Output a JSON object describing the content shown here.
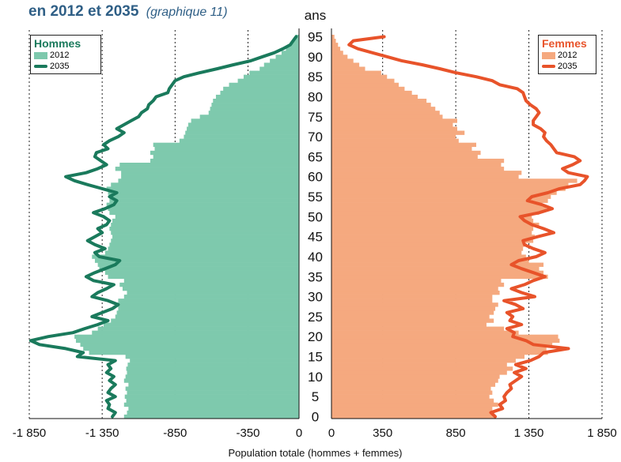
{
  "title": {
    "main": "en 2012 et 2035",
    "sub": "(graphique 11)"
  },
  "colors": {
    "men_bar": "#7ec9ad",
    "men_line": "#1a7a5c",
    "women_bar": "#f5a97f",
    "women_line": "#e8532a",
    "title": "#2f5f86",
    "men_legend_title": "#1a7a5c",
    "women_legend_title": "#e8532a"
  },
  "legend_men": {
    "title": "Hommes",
    "bar_label": "2012",
    "line_label": "2035"
  },
  "legend_women": {
    "title": "Femmes",
    "bar_label": "2012",
    "line_label": "2035"
  },
  "chart_data": {
    "type": "bar",
    "orientation": "horizontal",
    "description": "Population pyramid",
    "xlabel": "Population totale (hommes + femmes)",
    "ylabel": "ans",
    "age_ticks": [
      "0",
      "5",
      "10",
      "15",
      "20",
      "25",
      "30",
      "35",
      "40",
      "45",
      "50",
      "55",
      "60",
      "65",
      "70",
      "75",
      "80",
      "85",
      "90",
      "95"
    ],
    "men_ticks": [
      "-1 850",
      "-1 350",
      "-850",
      "-350",
      "0"
    ],
    "women_ticks": [
      "0",
      "350",
      "850",
      "1 350",
      "1 850"
    ],
    "xlim_men": [
      -1850,
      0
    ],
    "xlim_women": [
      0,
      1850
    ],
    "ylim": [
      0,
      95
    ],
    "grid": "vertical dotted lines at ticks",
    "legend_placement": "top-left for men, top-right for women",
    "men_2012": [
      1200,
      1180,
      1170,
      1200,
      1185,
      1195,
      1180,
      1190,
      1170,
      1200,
      1190,
      1180,
      1185,
      1175,
      1160,
      1190,
      1440,
      1480,
      1500,
      1530,
      1540,
      1420,
      1380,
      1340,
      1290,
      1260,
      1250,
      1240,
      1260,
      1240,
      1200,
      1180,
      1210,
      1230,
      1200,
      1310,
      1330,
      1370,
      1380,
      1400,
      1420,
      1330,
      1310,
      1300,
      1290,
      1280,
      1290,
      1300,
      1290,
      1280,
      1260,
      1300,
      1310,
      1320,
      1300,
      1280,
      1310,
      1320,
      1290,
      1240,
      1220,
      1220,
      1260,
      1230,
      1020,
      1000,
      1020,
      990,
      1000,
      820,
      790,
      780,
      770,
      760,
      740,
      680,
      620,
      610,
      600,
      590,
      570,
      540,
      520,
      480,
      420,
      380,
      340,
      270,
      240,
      200,
      160,
      120,
      90,
      60,
      40,
      25
    ],
    "men_2035": [
      1280,
      1260,
      1310,
      1300,
      1320,
      1260,
      1310,
      1290,
      1260,
      1300,
      1270,
      1320,
      1290,
      1310,
      1260,
      1520,
      1480,
      1600,
      1780,
      1840,
      1720,
      1550,
      1470,
      1380,
      1310,
      1420,
      1350,
      1280,
      1240,
      1310,
      1420,
      1380,
      1320,
      1270,
      1410,
      1460,
      1400,
      1330,
      1260,
      1230,
      1370,
      1400,
      1330,
      1400,
      1450,
      1400,
      1350,
      1380,
      1320,
      1300,
      1340,
      1410,
      1330,
      1270,
      1250,
      1300,
      1250,
      1350,
      1450,
      1540,
      1600,
      1460,
      1380,
      1320,
      1360,
      1400,
      1390,
      1310,
      1340,
      1300,
      1240,
      1200,
      1250,
      1200,
      1150,
      1100,
      1080,
      1040,
      1030,
      1000,
      980,
      900,
      890,
      870,
      850,
      790,
      680,
      560,
      450,
      330,
      250,
      170,
      110,
      60,
      40,
      20
    ],
    "women_2012": [
      1120,
      1110,
      1100,
      1140,
      1110,
      1080,
      1100,
      1090,
      1120,
      1140,
      1150,
      1200,
      1240,
      1200,
      1260,
      1320,
      1480,
      1470,
      1510,
      1560,
      1550,
      1280,
      1180,
      1060,
      1110,
      1080,
      1110,
      1120,
      1140,
      1100,
      1100,
      1150,
      1140,
      1180,
      1160,
      1480,
      1450,
      1420,
      1450,
      1350,
      1330,
      1300,
      1310,
      1320,
      1380,
      1390,
      1370,
      1380,
      1420,
      1380,
      1370,
      1420,
      1470,
      1440,
      1480,
      1500,
      1540,
      1600,
      1620,
      1680,
      1280,
      1300,
      1180,
      1160,
      1180,
      1000,
      1020,
      960,
      990,
      870,
      850,
      910,
      860,
      830,
      860,
      760,
      740,
      710,
      680,
      650,
      590,
      550,
      500,
      460,
      430,
      380,
      340,
      230,
      190,
      150,
      110,
      80,
      60,
      45,
      30,
      20
    ],
    "women_2035": [
      1120,
      1090,
      1170,
      1150,
      1190,
      1180,
      1200,
      1230,
      1220,
      1260,
      1300,
      1250,
      1330,
      1260,
      1360,
      1420,
      1450,
      1620,
      1380,
      1330,
      1240,
      1250,
      1200,
      1300,
      1220,
      1240,
      1200,
      1310,
      1260,
      1180,
      1390,
      1300,
      1230,
      1320,
      1380,
      1460,
      1380,
      1300,
      1230,
      1280,
      1400,
      1460,
      1380,
      1320,
      1310,
      1410,
      1520,
      1450,
      1370,
      1320,
      1290,
      1420,
      1510,
      1440,
      1340,
      1370,
      1480,
      1560,
      1700,
      1730,
      1750,
      1620,
      1580,
      1650,
      1700,
      1660,
      1540,
      1520,
      1500,
      1470,
      1450,
      1460,
      1430,
      1380,
      1380,
      1400,
      1420,
      1400,
      1360,
      1330,
      1320,
      1310,
      1270,
      1150,
      1100,
      990,
      850,
      740,
      620,
      480,
      380,
      280,
      180,
      120,
      150,
      360
    ]
  }
}
